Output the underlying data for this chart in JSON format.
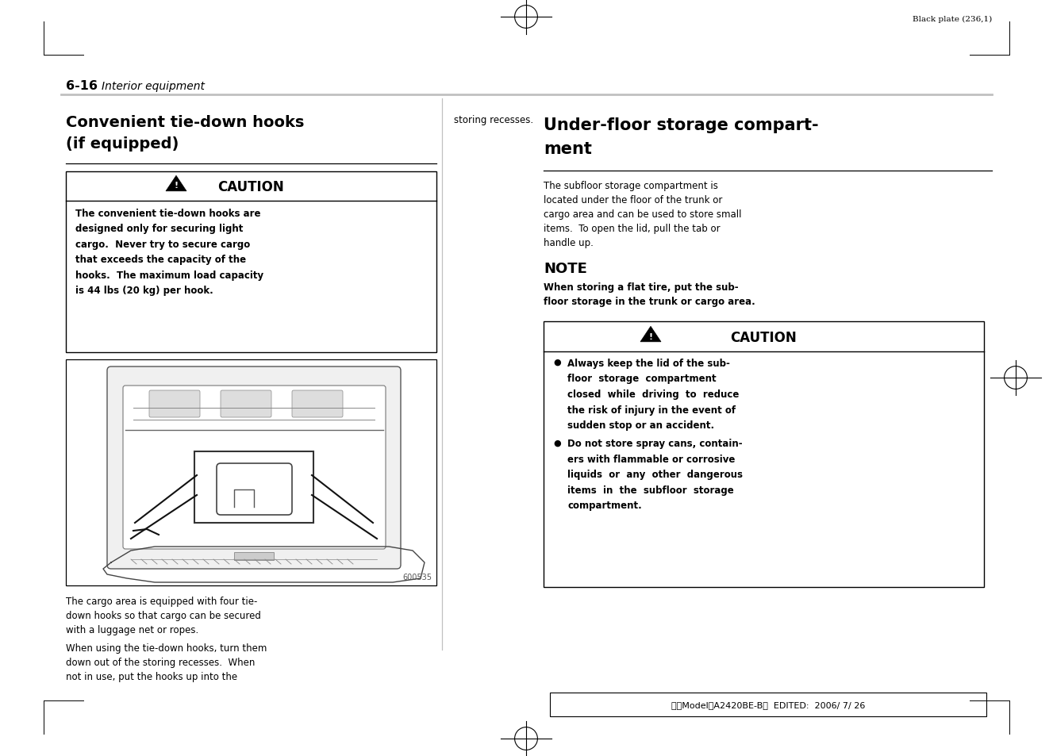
{
  "page_width": 13.27,
  "page_height": 9.54,
  "bg_color": "#ffffff",
  "top_text": "Black plate (236,1)",
  "header_section": "6-16",
  "header_italic": "Interior equipment",
  "left_title_line1": "Convenient tie-down hooks",
  "left_title_line2": "(if equipped)",
  "right_title_line1": "Under-floor storage compart-",
  "right_title_line2": "ment",
  "caution_title": "CAUTION",
  "caution_body_left": "The convenient tie-down hooks are\ndesigned only for securing light\ncargo.  Never try to secure cargo\nthat exceeds the capacity of the\nhooks.  The maximum load capacity\nis 44 lbs (20 kg) per hook.",
  "img_number": "600535",
  "para1_left": "The cargo area is equipped with four tie-\ndown hooks so that cargo can be secured\nwith a luggage net or ropes.",
  "para2_left": "When using the tie-down hooks, turn them\ndown out of the storing recesses.  When\nnot in use, put the hooks up into the",
  "right_cont": "storing recesses.",
  "under_floor_para": "The subfloor storage compartment is\nlocated under the floor of the trunk or\ncargo area and can be used to store small\nitems.  To open the lid, pull the tab or\nhandle up.",
  "note_title": "NOTE",
  "note_body": "When storing a flat tire, put the sub-\nfloor storage in the trunk or cargo area.",
  "caution2_title": "CAUTION",
  "caution2_bullet1": "Always keep the lid of the sub-\nfloor  storage  compartment\nclosed  while  driving  to  reduce\nthe risk of injury in the event of\nsudden stop or an accident.",
  "caution2_bullet2": "Do not store spray cans, contain-\ners with flammable or corrosive\nliquids  or  any  other  dangerous\nitems  in  the  subfloor  storage\ncompartment.",
  "footer_text": "北米Model１A2420BE-B＂  EDITED:  2006/ 7/ 26"
}
